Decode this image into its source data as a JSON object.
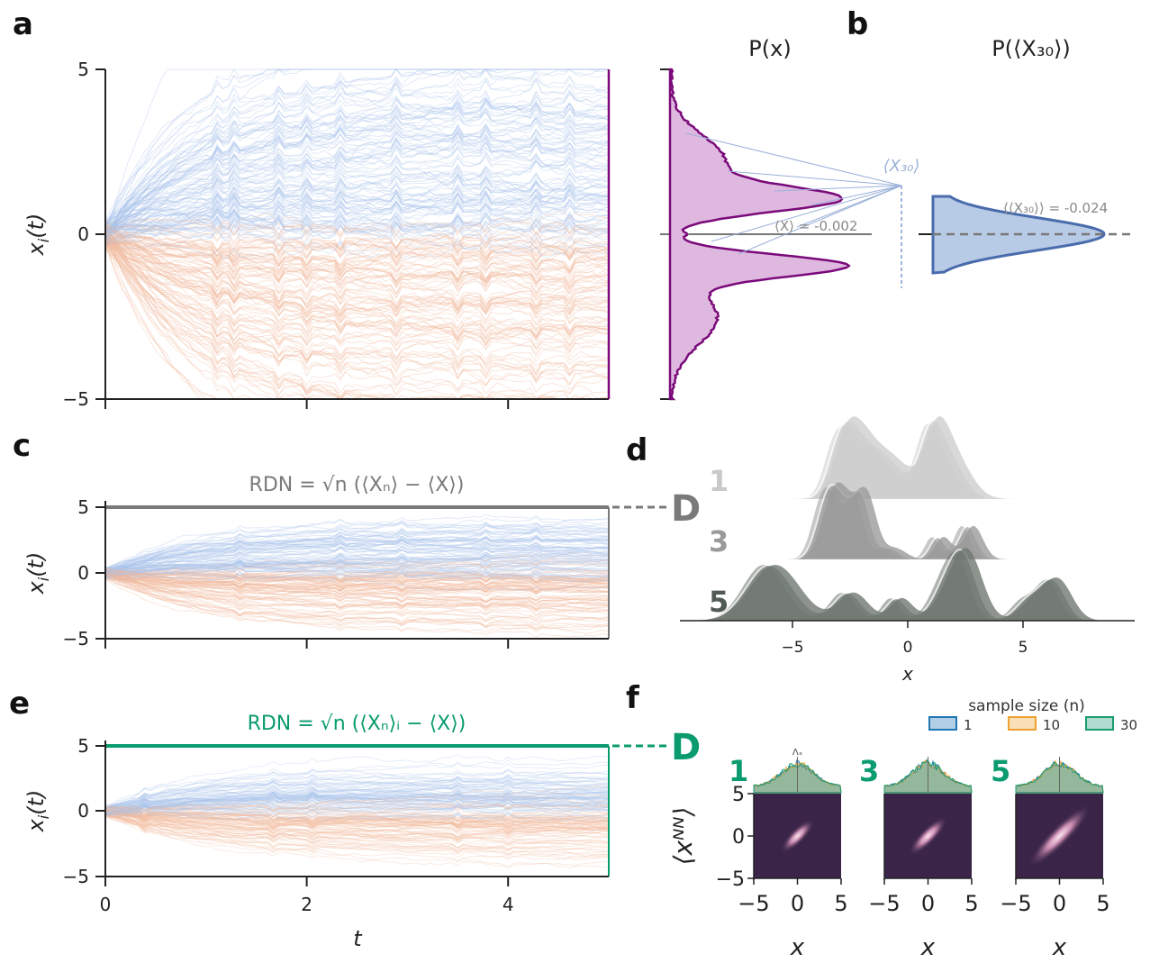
{
  "panels": {
    "a": {
      "letter": "a"
    },
    "b": {
      "letter": "b"
    },
    "c": {
      "letter": "c"
    },
    "d": {
      "letter": "d"
    },
    "e": {
      "letter": "e"
    },
    "f": {
      "letter": "f"
    }
  },
  "colors": {
    "blue_line": "#a9c4ec",
    "orange_line": "#f2b89a",
    "purple": "#7a0a7a",
    "purple_fill": "#dfb8df",
    "navy": "#4a6cad",
    "navy_fill": "#b8cbe6",
    "gray": "#7a7a7a",
    "green": "#0a9b6e",
    "dark_bg": "#3a2548",
    "ridge_light": "#c9c9c9",
    "ridge_mid": "#9a9a9a",
    "ridge_dark": "#6e7770"
  },
  "chart_data": [
    {
      "id": "a",
      "type": "line",
      "description_kind": "trajectories",
      "ylabel": "x_i(t)",
      "ylim": [
        -5,
        5
      ],
      "xlim": [
        0,
        5
      ],
      "yticks": [
        "5",
        "0",
        "−5"
      ],
      "ytick_values": [
        5,
        0,
        -5
      ],
      "xtick_values": [
        0,
        2,
        4
      ]
    },
    {
      "id": "a_hist",
      "type": "area",
      "title": "P(x)",
      "mean_label": "⟨X⟩ = ",
      "mean_value": "-0.002",
      "callout_label": "⟨X₃₀⟩"
    },
    {
      "id": "b",
      "type": "area",
      "title": "P(⟨X₃₀⟩)",
      "mean_label": "⟨⟨X₃₀⟩⟩ = ",
      "mean_value": "-0.024"
    },
    {
      "id": "c",
      "type": "line",
      "ylabel": "x_i(t)",
      "ylim": [
        -5,
        5
      ],
      "yticks": [
        "5",
        "0",
        "−5"
      ],
      "ytick_values": [
        5,
        0,
        -5
      ],
      "annotation": "RDN = √n (⟨Xₙ⟩ − ⟨X⟩)",
      "marker": "D"
    },
    {
      "id": "d",
      "type": "area",
      "xlabel": "x",
      "xticks": [
        "−5",
        "0",
        "5"
      ],
      "xtick_values": [
        -5,
        0,
        5
      ],
      "rows": [
        "1",
        "3",
        "5"
      ]
    },
    {
      "id": "e",
      "type": "line",
      "ylabel": "x_i(t)",
      "xlabel": "t",
      "ylim": [
        -5,
        5
      ],
      "xlim": [
        0,
        5
      ],
      "yticks": [
        "5",
        "0",
        "−5"
      ],
      "ytick_values": [
        5,
        0,
        -5
      ],
      "xticks": [
        "0",
        "2",
        "4"
      ],
      "xtick_values": [
        0,
        2,
        4
      ],
      "annotation": "RDN = √n (⟨Xₙ⟩ᵢ − ⟨X⟩)",
      "marker": "D"
    },
    {
      "id": "f",
      "type": "heatmap",
      "ylabel": "⟨xᴺᴺ⟩",
      "xlabel": "x",
      "legend_title": "sample size (n)",
      "legend": [
        "1",
        "10",
        "30"
      ],
      "legend_colors": [
        "#1f77b4",
        "#f0a030",
        "#1a9b72"
      ],
      "subplots": [
        "1",
        "3",
        "5"
      ],
      "xticks": [
        "−5",
        "0",
        "5"
      ],
      "xtick_values": [
        -5,
        0,
        5
      ],
      "yticks": [
        "5",
        "0",
        "−5"
      ],
      "ytick_values": [
        5,
        0,
        -5
      ],
      "marginal_annotation": "Λₓ",
      "xlim": [
        -5,
        5
      ],
      "ylim": [
        -5,
        5
      ]
    }
  ]
}
